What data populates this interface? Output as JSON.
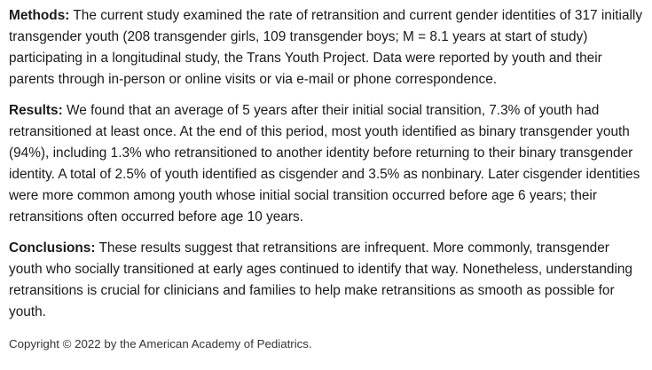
{
  "sections": [
    {
      "label": "Methods:",
      "text": "The current study examined the rate of retransition and current gender identities of 317 initially transgender youth (208 transgender girls, 109 transgender boys; M = 8.1 years at start of study) participating in a longitudinal study, the Trans Youth Project. Data were reported by youth and their parents through in-person or online visits or via e-mail or phone correspondence."
    },
    {
      "label": "Results:",
      "text": "We found that an average of 5 years after their initial social transition, 7.3% of youth had retransitioned at least once. At the end of this period, most youth identified as binary transgender youth (94%), including 1.3% who retransitioned to another identity before returning to their binary transgender identity. A total of 2.5% of youth identified as cisgender and 3.5% as nonbinary. Later cisgender identities were more common among youth whose initial social transition occurred before age 6 years; their retransitions often occurred before age 10 years."
    },
    {
      "label": "Conclusions:",
      "text": "These results suggest that retransitions are infrequent. More commonly, transgender youth who socially transitioned at early ages continued to identify that way. Nonetheless, understanding retransitions is crucial for clinicians and families to help make retransitions as smooth as possible for youth."
    }
  ],
  "copyright": "Copyright © 2022 by the American Academy of Pediatrics."
}
